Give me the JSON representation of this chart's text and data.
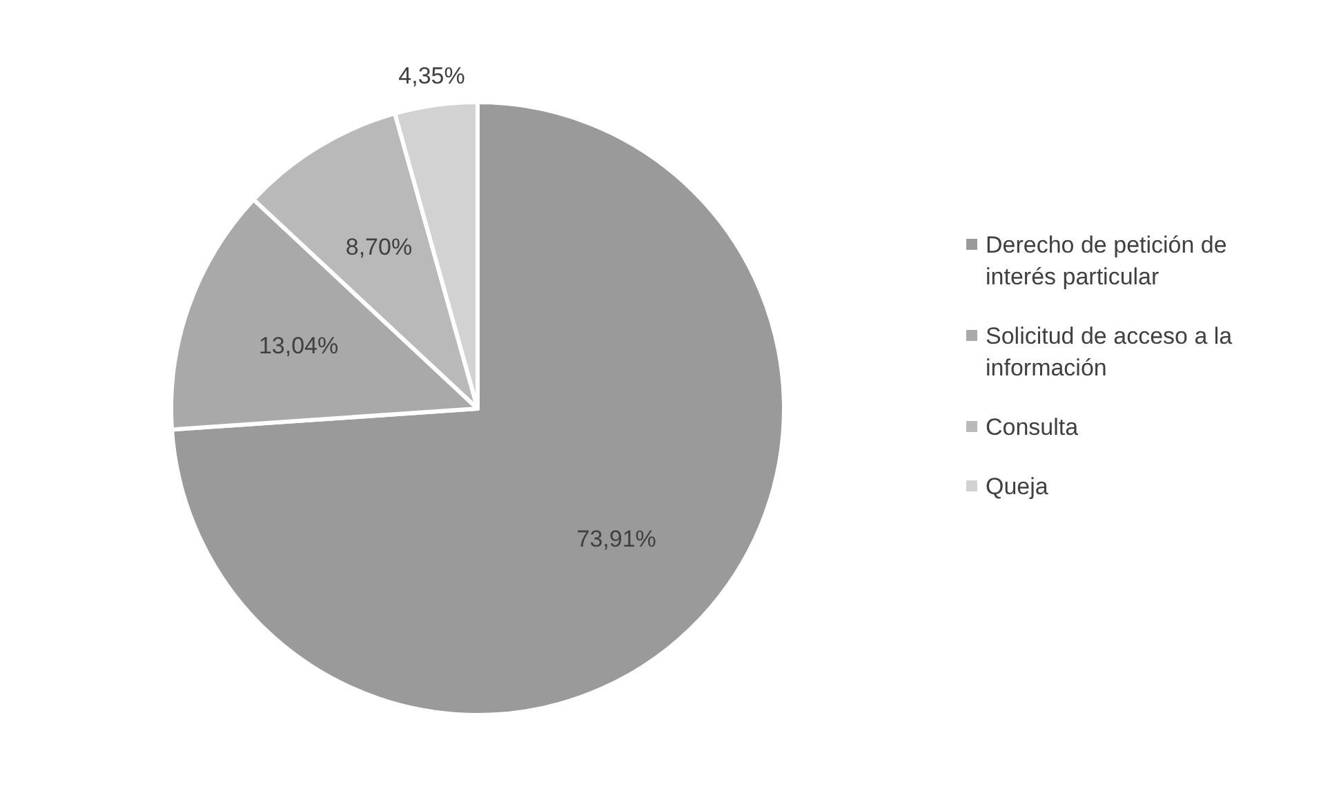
{
  "chart_data": {
    "type": "pie",
    "categories": [
      "Derecho de petición de interés particular",
      "Solicitud de acceso a la información",
      "Consulta",
      "Queja"
    ],
    "values": [
      73.91,
      13.04,
      8.7,
      4.35
    ],
    "value_labels": [
      "73,91%",
      "13,04%",
      "8,70%",
      "4,35%"
    ],
    "colors": [
      "#9a9a9a",
      "#a9a9a9",
      "#b9b9b9",
      "#d2d2d2"
    ],
    "legend": "right"
  }
}
